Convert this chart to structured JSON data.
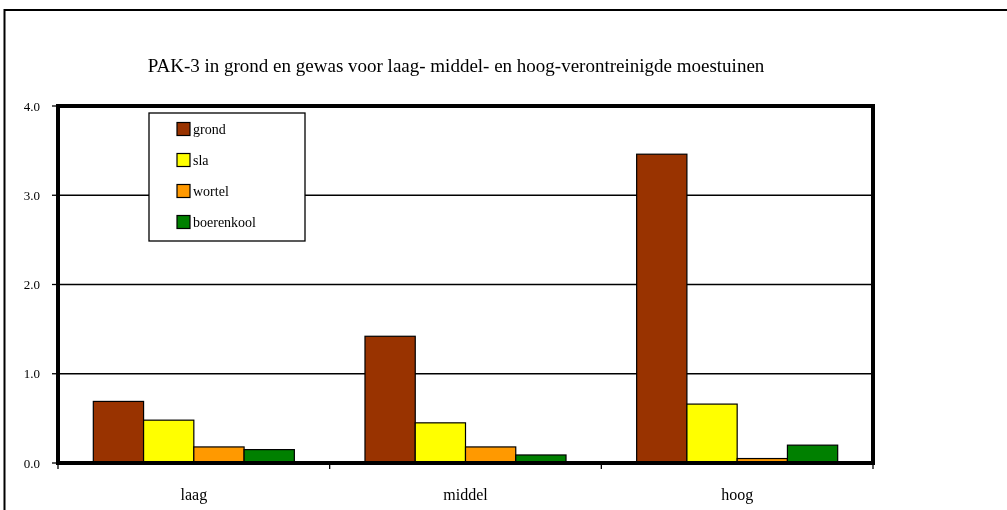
{
  "chart_data": {
    "type": "bar",
    "title": "PAK-3 in grond en gewas voor laag- middel- en hoog-verontreinigde moestuinen",
    "categories": [
      "laag",
      "middel",
      "hoog"
    ],
    "series": [
      {
        "name": "grond",
        "color": "#993300",
        "values": [
          0.69,
          1.42,
          3.46
        ]
      },
      {
        "name": "sla",
        "color": "#ffff00",
        "values": [
          0.48,
          0.45,
          0.66
        ]
      },
      {
        "name": "wortel",
        "color": "#ff9900",
        "values": [
          0.18,
          0.18,
          0.05
        ]
      },
      {
        "name": "boerenkool",
        "color": "#008000",
        "values": [
          0.15,
          0.09,
          0.2
        ]
      }
    ],
    "ylim": [
      0,
      4
    ],
    "yticks": [
      {
        "value": 0,
        "label": "0.0"
      },
      {
        "value": 1,
        "label": "1.0"
      },
      {
        "value": 2,
        "label": "2.0"
      },
      {
        "value": 3,
        "label": "3.0"
      },
      {
        "value": 4,
        "label": "4.0"
      }
    ],
    "grid": "y",
    "legend": "top left"
  }
}
